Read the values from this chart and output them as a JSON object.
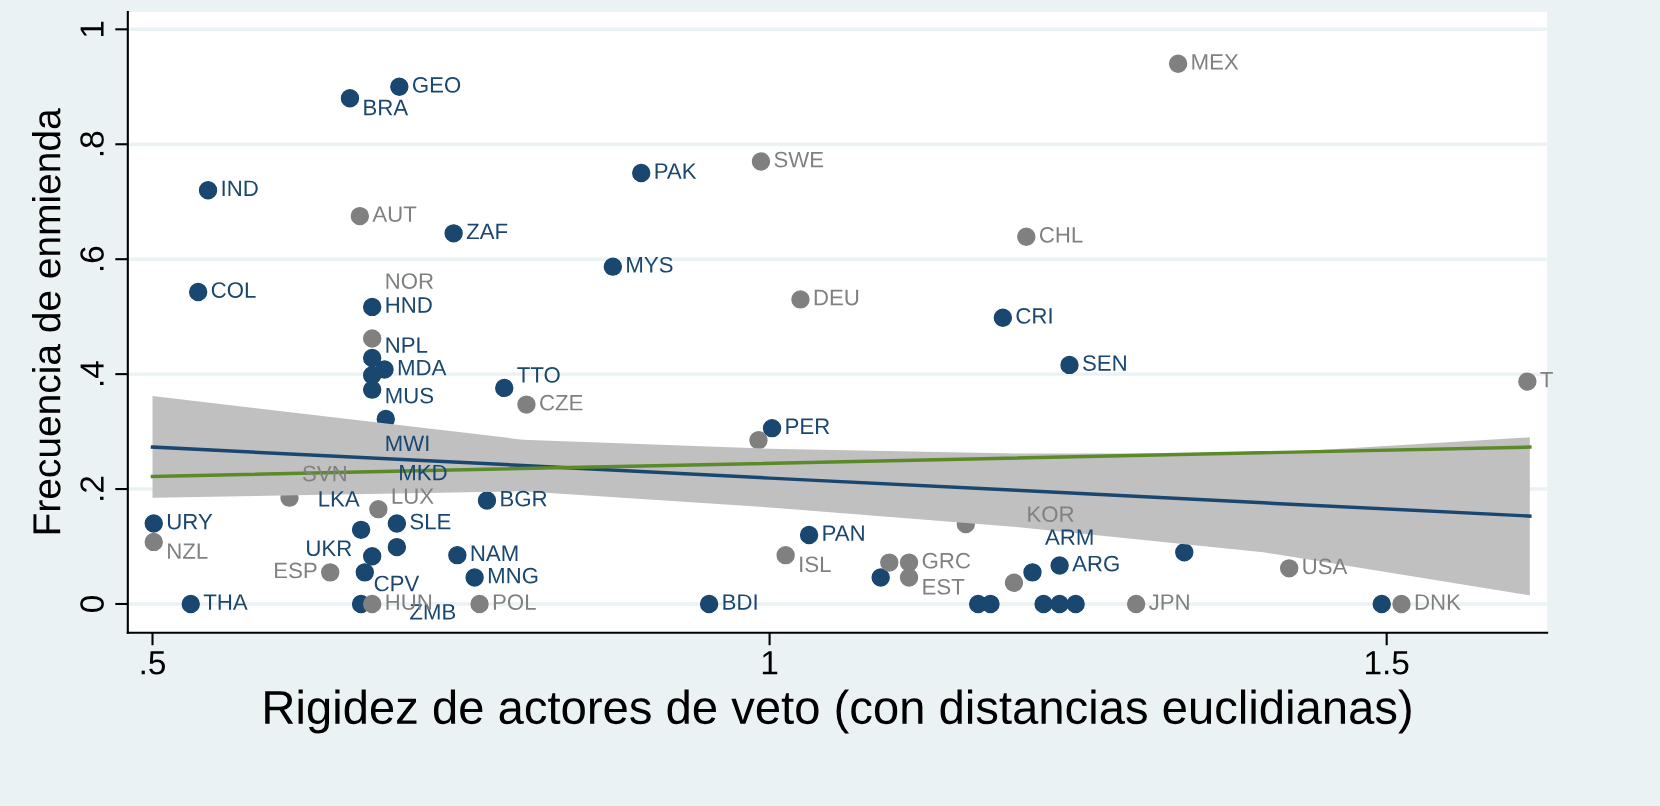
{
  "chart_data": {
    "type": "scatter",
    "xlabel": "Rigidez de actores de veto (con distancias euclidianas)",
    "ylabel": "Frecuencia de enmienda",
    "xlim": [
      0.48,
      1.63
    ],
    "ylim": [
      -0.05,
      1.03
    ],
    "xticks": [
      {
        "value": 0.5,
        "label": ".5"
      },
      1,
      1.5
    ],
    "yticks": [
      0,
      {
        "value": 0.2,
        "label": ".2"
      },
      {
        "value": 0.4,
        "label": ".4"
      },
      {
        "value": 0.6,
        "label": ".6"
      },
      {
        "value": 0.8,
        "label": ".8"
      },
      1
    ],
    "grid": "y",
    "marker": "circle",
    "series": [
      {
        "type": "scatter",
        "color": "#1a476f",
        "x": [
          0.7,
          0.66,
          0.545,
          0.896,
          0.744,
          0.873,
          0.537,
          0.678,
          1.189,
          1.243,
          0.678,
          0.688,
          0.678,
          0.678,
          0.785,
          0.689,
          0.771,
          0.501,
          0.531,
          0.669,
          0.698,
          0.698,
          0.678,
          0.747,
          0.672,
          0.761,
          0.669,
          0.951,
          1.002,
          1.032,
          1.09,
          1.213,
          1.235,
          1.169,
          1.179,
          1.222,
          1.235,
          1.248,
          1.336,
          1.496
        ],
        "values": [
          0.9,
          0.88,
          0.72,
          0.75,
          0.645,
          0.587,
          0.543,
          0.517,
          0.498,
          0.416,
          0.428,
          0.408,
          0.398,
          0.373,
          0.376,
          0.322,
          0.18,
          0.14,
          0,
          0.129,
          0.14,
          0.099,
          0.083,
          0.085,
          0.055,
          0.046,
          0,
          0,
          0.306,
          0.12,
          0.046,
          0.055,
          0.067,
          0,
          0,
          0,
          0,
          0,
          0.09,
          0
        ]
      },
      {
        "type": "scatter",
        "color": "#808080",
        "x": [
          1.331,
          0.993,
          0.668,
          1.208,
          1.025,
          0.678,
          0.803,
          0.611,
          0.683,
          0.501,
          0.644,
          0.678,
          0.765,
          0.991,
          1.013,
          1.113,
          1.097,
          1.113,
          1.198,
          1.297,
          1.421,
          1.512,
          1.614,
          1.159
        ],
        "values": [
          0.94,
          0.77,
          0.675,
          0.639,
          0.53,
          0.462,
          0.347,
          0.185,
          0.165,
          0.108,
          0.055,
          0,
          0,
          0.285,
          0.085,
          0.072,
          0.072,
          0.046,
          0.037,
          0,
          0.062,
          0,
          0.387,
          0.139
        ]
      },
      {
        "type": "line",
        "color": "#1a476f",
        "marker": "none",
        "x": [
          0.5,
          0.8,
          1.0,
          1.2,
          1.4,
          1.616
        ],
        "values": [
          0.273,
          0.241,
          0.219,
          0.198,
          0.176,
          0.153
        ],
        "lower": [
          0.185,
          0.196,
          0.168,
          0.134,
          0.09,
          0.015
        ],
        "upper": [
          0.362,
          0.286,
          0.27,
          0.262,
          0.262,
          0.29
        ]
      },
      {
        "type": "line",
        "color": "#5a8a2a",
        "marker": "none",
        "x": [
          0.5,
          1.616
        ],
        "values": [
          0.222,
          0.273
        ]
      }
    ],
    "annotations": [
      {
        "text": "GEO",
        "x": 0.7,
        "y": 0.9
      },
      {
        "text": "BRA",
        "x": 0.66,
        "y": 0.88
      },
      {
        "text": "IND",
        "x": 0.545,
        "y": 0.72
      },
      {
        "text": "PAK",
        "x": 0.896,
        "y": 0.75
      },
      {
        "text": "ZAF",
        "x": 0.744,
        "y": 0.645
      },
      {
        "text": "MYS",
        "x": 0.873,
        "y": 0.587
      },
      {
        "text": "COL",
        "x": 0.537,
        "y": 0.543
      },
      {
        "text": "HND",
        "x": 0.678,
        "y": 0.517
      },
      {
        "text": "CRI",
        "x": 1.189,
        "y": 0.498
      },
      {
        "text": "SEN",
        "x": 1.243,
        "y": 0.416
      },
      {
        "text": "NPL",
        "x": 0.678,
        "y": 0.428
      },
      {
        "text": "MDA",
        "x": 0.688,
        "y": 0.408
      },
      {
        "text": "MUS",
        "x": 0.678,
        "y": 0.398
      },
      {
        "text": "MWI",
        "x": 0.678,
        "y": 0.373
      },
      {
        "text": "TTO",
        "x": 0.785,
        "y": 0.376
      },
      {
        "text": "MKD",
        "x": 0.689,
        "y": 0.322
      },
      {
        "text": "BGR",
        "x": 0.771,
        "y": 0.18
      },
      {
        "text": "URY",
        "x": 0.501,
        "y": 0.14
      },
      {
        "text": "THA",
        "x": 0.531,
        "y": 0
      },
      {
        "text": "CPV",
        "x": 0.669,
        "y": 0.129
      },
      {
        "text": "SLE",
        "x": 0.698,
        "y": 0.14
      },
      {
        "text": "ZMB",
        "x": 0.698,
        "y": 0.099
      },
      {
        "text": "LKA",
        "x": 0.678,
        "y": 0.083
      },
      {
        "text": "NAM",
        "x": 0.747,
        "y": 0.085
      },
      {
        "text": "UKR",
        "x": 0.672,
        "y": 0.055
      },
      {
        "text": "MNG",
        "x": 0.761,
        "y": 0.046
      },
      {
        "text": "BDI",
        "x": 0.951,
        "y": 0
      },
      {
        "text": "PER",
        "x": 1.002,
        "y": 0.306
      },
      {
        "text": "PAN",
        "x": 1.032,
        "y": 0.12
      },
      {
        "text": "ARM",
        "x": 1.213,
        "y": 0.055
      },
      {
        "text": "ARG",
        "x": 1.235,
        "y": 0.067
      },
      {
        "text": "MEX",
        "x": 1.331,
        "y": 0.94
      },
      {
        "text": "SWE",
        "x": 0.993,
        "y": 0.77
      },
      {
        "text": "AUT",
        "x": 0.668,
        "y": 0.675
      },
      {
        "text": "CHL",
        "x": 1.208,
        "y": 0.639
      },
      {
        "text": "DEU",
        "x": 1.025,
        "y": 0.53
      },
      {
        "text": "NOR",
        "x": 0.678,
        "y": 0.462
      },
      {
        "text": "CZE",
        "x": 0.803,
        "y": 0.347
      },
      {
        "text": "SVN",
        "x": 0.611,
        "y": 0.185
      },
      {
        "text": "LUX",
        "x": 0.683,
        "y": 0.165
      },
      {
        "text": "NZL",
        "x": 0.501,
        "y": 0.108
      },
      {
        "text": "ESP",
        "x": 0.644,
        "y": 0.055
      },
      {
        "text": "HUN",
        "x": 0.678,
        "y": 0
      },
      {
        "text": "POL",
        "x": 0.765,
        "y": 0
      },
      {
        "text": "ISL",
        "x": 1.013,
        "y": 0.085
      },
      {
        "text": "GRC",
        "x": 1.113,
        "y": 0.072
      },
      {
        "text": "EST",
        "x": 1.113,
        "y": 0.046
      },
      {
        "text": "KOR",
        "x": 1.198,
        "y": 0.037
      },
      {
        "text": "JPN",
        "x": 1.297,
        "y": 0
      },
      {
        "text": "USA",
        "x": 1.421,
        "y": 0.062
      },
      {
        "text": "DNK",
        "x": 1.512,
        "y": 0
      },
      {
        "text": "T",
        "x": 1.614,
        "y": 0.387
      }
    ]
  }
}
